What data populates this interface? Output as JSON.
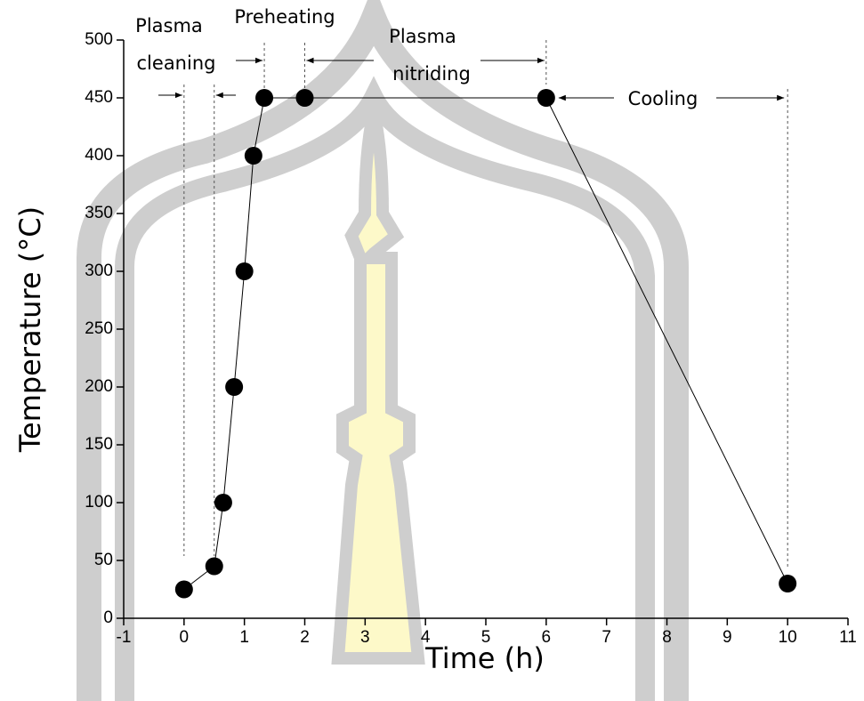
{
  "chart_data": {
    "type": "line",
    "x_label": "Time (h)",
    "y_label": "Temperature (°C)",
    "x": [
      0,
      0.5,
      0.65,
      0.83,
      1,
      1.15,
      1.33,
      2,
      6,
      10
    ],
    "series": [
      {
        "color": "#000000",
        "values": [
          25,
          45,
          100,
          200,
          300,
          400,
          450,
          450,
          450,
          30
        ]
      }
    ],
    "xlim": [
      -1,
      11
    ],
    "xticks": [
      -1,
      0,
      1,
      2,
      3,
      4,
      5,
      6,
      7,
      8,
      9,
      10,
      11
    ],
    "ylim": [
      0,
      500
    ],
    "yticks": [
      0,
      50,
      100,
      150,
      200,
      250,
      300,
      350,
      400,
      450,
      500
    ],
    "annotations": [
      "Plasma",
      "cleaning",
      "Preheating",
      "Plasma",
      "nitriding",
      "Cooling"
    ]
  }
}
